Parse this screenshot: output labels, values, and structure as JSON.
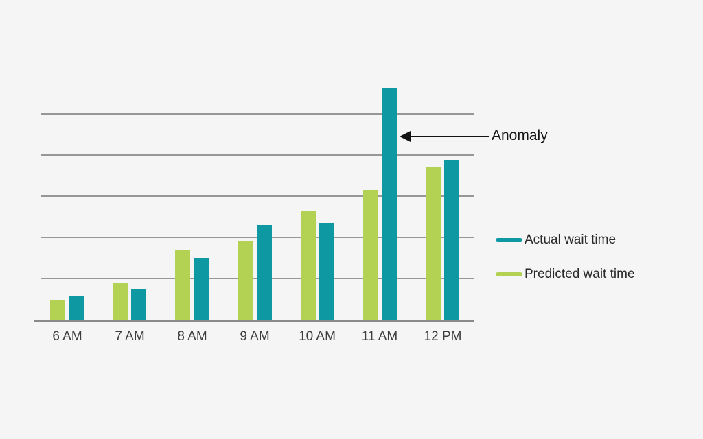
{
  "background_color": "#f5f5f5",
  "annotation": {
    "label": "Anomaly"
  },
  "legend": {
    "items": [
      {
        "id": "actual",
        "label": "Actual wait time",
        "color": "#0d98a2"
      },
      {
        "id": "predicted",
        "label": "Predicted wait time",
        "color": "#b3d152"
      }
    ]
  },
  "chart_data": {
    "type": "bar",
    "title": "",
    "xlabel": "",
    "ylabel": "",
    "categories": [
      "6 AM",
      "7 AM",
      "8 AM",
      "9 AM",
      "10 AM",
      "11 AM",
      "12 PM"
    ],
    "series": [
      {
        "name": "Actual wait time",
        "color": "#0d98a2",
        "values": [
          5.7,
          7.5,
          15.0,
          23.0,
          23.5,
          56.2,
          38.8
        ]
      },
      {
        "name": "Predicted wait time",
        "color": "#b3d152",
        "values": [
          4.8,
          8.8,
          16.8,
          19.0,
          26.5,
          31.5,
          37.2
        ]
      }
    ],
    "bar_order": [
      "Predicted wait time",
      "Actual wait time"
    ],
    "units": "minutes",
    "ylim": [
      0,
      60
    ],
    "gridlines": [
      10,
      20,
      30,
      40,
      50
    ],
    "grid_on": true,
    "y_tick_labels_shown": false,
    "legend_position": "right",
    "annotation": {
      "text": "Anomaly",
      "target_category": "11 AM",
      "target_series": "Actual wait time",
      "target_value": 56.2
    }
  }
}
